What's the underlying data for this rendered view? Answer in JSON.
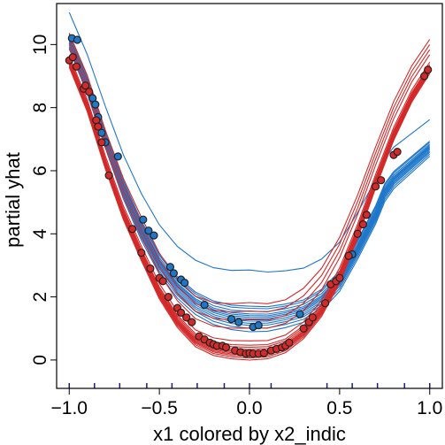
{
  "chart_data": {
    "type": "line",
    "subtype": "individual-conditional-expectation",
    "title": "",
    "xlabel": "x1 colored by x2_indic",
    "ylabel": "partial yhat",
    "xlim": [
      -1.07,
      1.07
    ],
    "ylim": [
      -0.9,
      11.3
    ],
    "x_ticks": [
      -1.0,
      -0.5,
      0.0,
      0.5,
      1.0
    ],
    "x_tick_labels": [
      "−1.0",
      "−0.5",
      "0.0",
      "0.5",
      "1.0"
    ],
    "y_ticks": [
      0,
      2,
      4,
      6,
      8,
      10
    ],
    "y_tick_labels": [
      "0",
      "2",
      "4",
      "6",
      "8",
      "10"
    ],
    "grid": false,
    "legend": "none",
    "rug_x": [
      -1.0,
      -0.86,
      -0.72,
      -0.57,
      -0.43,
      -0.29,
      -0.14,
      0.0,
      0.12,
      0.43,
      0.57,
      0.71,
      0.86,
      1.0
    ],
    "series": [
      {
        "group": "blue",
        "color": "#1f77c9",
        "x": [
          -1.0,
          -0.9,
          -0.8,
          -0.7,
          -0.6,
          -0.5,
          -0.4,
          -0.3,
          -0.2,
          -0.1,
          0.0,
          0.1,
          0.2,
          0.3,
          0.4,
          0.5,
          0.6,
          0.7,
          0.75,
          0.8,
          0.9,
          1.0
        ],
        "center_y": [
          10.1,
          8.7,
          7.0,
          5.4,
          4.1,
          3.05,
          2.3,
          1.8,
          1.5,
          1.35,
          1.3,
          1.3,
          1.4,
          1.55,
          1.9,
          2.5,
          3.5,
          4.6,
          5.3,
          5.7,
          6.2,
          6.7
        ],
        "curve_offsets": [
          -0.3,
          -0.22,
          -0.15,
          -0.1,
          -0.05,
          0.0,
          0.04,
          0.08,
          0.12,
          0.18,
          0.25,
          0.3,
          1.15
        ],
        "observed_points": [
          {
            "x": -0.985,
            "y": 10.2
          },
          {
            "x": -0.955,
            "y": 10.15
          },
          {
            "x": -0.87,
            "y": 8.3
          },
          {
            "x": -0.855,
            "y": 8.1
          },
          {
            "x": -0.84,
            "y": 7.7
          },
          {
            "x": -0.82,
            "y": 7.2
          },
          {
            "x": -0.8,
            "y": 6.9
          },
          {
            "x": -0.73,
            "y": 6.45
          },
          {
            "x": -0.59,
            "y": 4.45
          },
          {
            "x": -0.56,
            "y": 4.1
          },
          {
            "x": -0.53,
            "y": 3.95
          },
          {
            "x": -0.44,
            "y": 2.95
          },
          {
            "x": -0.42,
            "y": 2.75
          },
          {
            "x": -0.38,
            "y": 2.55
          },
          {
            "x": -0.36,
            "y": 2.45
          },
          {
            "x": -0.25,
            "y": 1.75
          },
          {
            "x": -0.1,
            "y": 1.3
          },
          {
            "x": -0.06,
            "y": 1.2
          },
          {
            "x": 0.02,
            "y": 1.05
          },
          {
            "x": 0.05,
            "y": 1.1
          },
          {
            "x": 0.28,
            "y": 1.45
          },
          {
            "x": 0.55,
            "y": 3.3
          },
          {
            "x": 0.57,
            "y": 3.35
          }
        ]
      },
      {
        "group": "red",
        "color": "#d42a2a",
        "x": [
          -1.0,
          -0.9,
          -0.8,
          -0.7,
          -0.6,
          -0.5,
          -0.4,
          -0.3,
          -0.2,
          -0.1,
          0.0,
          0.1,
          0.2,
          0.3,
          0.4,
          0.5,
          0.6,
          0.7,
          0.8,
          0.9,
          1.0
        ],
        "center_y": [
          9.4,
          8.0,
          6.2,
          4.6,
          3.3,
          2.1,
          1.2,
          0.6,
          0.33,
          0.23,
          0.2,
          0.23,
          0.42,
          0.85,
          1.55,
          2.6,
          4.0,
          5.6,
          7.1,
          8.3,
          9.2
        ],
        "curve_offsets": [
          -0.15,
          -0.1,
          -0.06,
          -0.03,
          0.0,
          0.03,
          0.06,
          0.1,
          0.15,
          0.2,
          0.3,
          0.6,
          0.8,
          1.0,
          1.2
        ],
        "observed_points": [
          {
            "x": -1.0,
            "y": 9.5
          },
          {
            "x": -0.98,
            "y": 9.6
          },
          {
            "x": -0.96,
            "y": 9.3
          },
          {
            "x": -0.92,
            "y": 8.6
          },
          {
            "x": -0.91,
            "y": 8.7
          },
          {
            "x": -0.89,
            "y": 8.5
          },
          {
            "x": -0.85,
            "y": 7.6
          },
          {
            "x": -0.84,
            "y": 7.4
          },
          {
            "x": -0.82,
            "y": 6.9
          },
          {
            "x": -0.78,
            "y": 5.85
          },
          {
            "x": -0.65,
            "y": 4.15
          },
          {
            "x": -0.6,
            "y": 3.4
          },
          {
            "x": -0.55,
            "y": 2.9
          },
          {
            "x": -0.5,
            "y": 2.6
          },
          {
            "x": -0.48,
            "y": 2.5
          },
          {
            "x": -0.45,
            "y": 2.0
          },
          {
            "x": -0.4,
            "y": 1.65
          },
          {
            "x": -0.38,
            "y": 1.5
          },
          {
            "x": -0.35,
            "y": 1.35
          },
          {
            "x": -0.32,
            "y": 1.2
          },
          {
            "x": -0.28,
            "y": 0.75
          },
          {
            "x": -0.25,
            "y": 0.65
          },
          {
            "x": -0.22,
            "y": 0.55
          },
          {
            "x": -0.2,
            "y": 0.5
          },
          {
            "x": -0.18,
            "y": 0.45
          },
          {
            "x": -0.15,
            "y": 0.45
          },
          {
            "x": -0.13,
            "y": 0.4
          },
          {
            "x": -0.08,
            "y": 0.3
          },
          {
            "x": -0.05,
            "y": 0.25
          },
          {
            "x": -0.02,
            "y": 0.2
          },
          {
            "x": 0.0,
            "y": 0.22
          },
          {
            "x": 0.02,
            "y": 0.2
          },
          {
            "x": 0.05,
            "y": 0.2
          },
          {
            "x": 0.08,
            "y": 0.22
          },
          {
            "x": 0.12,
            "y": 0.3
          },
          {
            "x": 0.15,
            "y": 0.35
          },
          {
            "x": 0.18,
            "y": 0.4
          },
          {
            "x": 0.2,
            "y": 0.45
          },
          {
            "x": 0.22,
            "y": 0.55
          },
          {
            "x": 0.3,
            "y": 1.0
          },
          {
            "x": 0.33,
            "y": 1.2
          },
          {
            "x": 0.35,
            "y": 1.35
          },
          {
            "x": 0.42,
            "y": 1.8
          },
          {
            "x": 0.45,
            "y": 2.4
          },
          {
            "x": 0.48,
            "y": 2.5
          },
          {
            "x": 0.5,
            "y": 2.6
          },
          {
            "x": 0.55,
            "y": 3.3
          },
          {
            "x": 0.6,
            "y": 4.0
          },
          {
            "x": 0.63,
            "y": 4.3
          },
          {
            "x": 0.65,
            "y": 4.6
          },
          {
            "x": 0.7,
            "y": 5.5
          },
          {
            "x": 0.73,
            "y": 5.7
          },
          {
            "x": 0.8,
            "y": 6.5
          },
          {
            "x": 0.82,
            "y": 6.6
          },
          {
            "x": 0.97,
            "y": 9.0
          },
          {
            "x": 0.99,
            "y": 9.2
          }
        ]
      }
    ]
  }
}
